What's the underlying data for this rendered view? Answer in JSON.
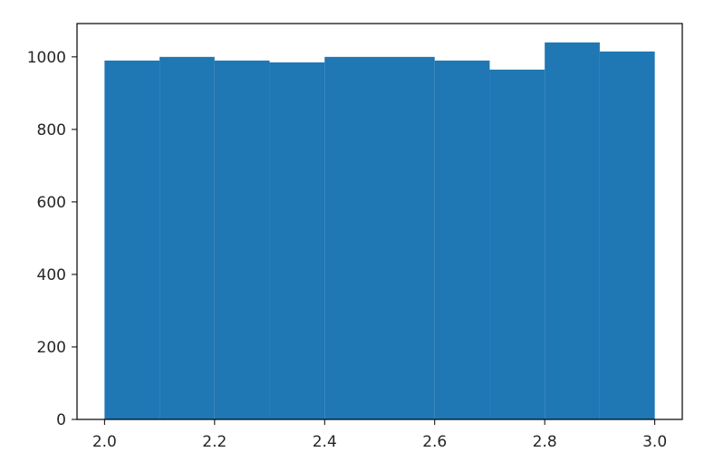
{
  "chart_data": {
    "type": "bar",
    "subtype": "histogram",
    "bin_edges": [
      2.0,
      2.1,
      2.2,
      2.3,
      2.4,
      2.5,
      2.6,
      2.7,
      2.8,
      2.9,
      3.0
    ],
    "values": [
      990,
      1000,
      990,
      985,
      1000,
      1000,
      990,
      965,
      1040,
      1015
    ],
    "color": "#1f77b4",
    "title": "",
    "xlabel": "",
    "ylabel": "",
    "xlim": [
      1.95,
      3.05
    ],
    "ylim": [
      0,
      1092
    ],
    "xticks": [
      2.0,
      2.2,
      2.4,
      2.6,
      2.8,
      3.0
    ],
    "xtick_labels": [
      "2.0",
      "2.2",
      "2.4",
      "2.6",
      "2.8",
      "3.0"
    ],
    "yticks": [
      0,
      200,
      400,
      600,
      800,
      1000
    ],
    "ytick_labels": [
      "0",
      "200",
      "400",
      "600",
      "800",
      "1000"
    ],
    "grid": false,
    "legend": "none"
  }
}
